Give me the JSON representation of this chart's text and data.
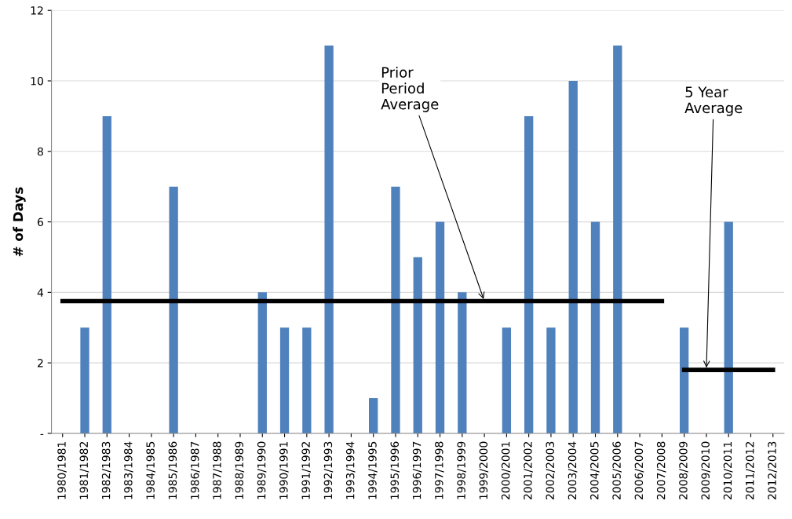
{
  "chart_data": {
    "type": "bar",
    "ylabel": "# of Days",
    "categories": [
      "1980/1981",
      "1981/1982",
      "1982/1983",
      "1983/1984",
      "1984/1985",
      "1985/1986",
      "1986/1987",
      "1987/1988",
      "1988/1989",
      "1989/1990",
      "1990/1991",
      "1991/1992",
      "1992/1993",
      "1993/1994",
      "1994/1995",
      "1995/1996",
      "1996/1997",
      "1997/1998",
      "1998/1999",
      "1999/2000",
      "2000/2001",
      "2001/2002",
      "2002/2003",
      "2003/2004",
      "2004/2005",
      "2005/2006",
      "2006/2007",
      "2007/2008",
      "2008/2009",
      "2009/2010",
      "2010/2011",
      "2011/2012",
      "2012/2013"
    ],
    "series": [
      {
        "color": "#4f81bd",
        "values": [
          0,
          3,
          9,
          0,
          0,
          7,
          0,
          0,
          0,
          4,
          3,
          3,
          11,
          0,
          1,
          7,
          5,
          6,
          4,
          0,
          3,
          9,
          3,
          10,
          6,
          11,
          0,
          0,
          3,
          0,
          6,
          0,
          0
        ]
      },
      {
        "type": "line",
        "color": "#000000",
        "values": [
          3.75,
          3.75,
          3.75,
          3.75,
          3.75,
          3.75,
          3.75,
          3.75,
          3.75,
          3.75,
          3.75,
          3.75,
          3.75,
          3.75,
          3.75,
          3.75,
          3.75,
          3.75,
          3.75,
          3.75,
          3.75,
          3.75,
          3.75,
          3.75,
          3.75,
          3.75,
          3.75,
          3.75,
          null,
          null,
          null,
          null,
          null
        ]
      },
      {
        "type": "line",
        "color": "#000000",
        "values": [
          null,
          null,
          null,
          null,
          null,
          null,
          null,
          null,
          null,
          null,
          null,
          null,
          null,
          null,
          null,
          null,
          null,
          null,
          null,
          null,
          null,
          null,
          null,
          null,
          null,
          null,
          null,
          null,
          1.8,
          1.8,
          1.8,
          1.8,
          1.8
        ]
      }
    ],
    "ylim": [
      0,
      12
    ],
    "yticks": [
      {
        "value": 0,
        "label": "-"
      },
      2,
      4,
      6,
      8,
      10,
      12
    ],
    "grid": "y",
    "annotations": [
      {
        "text": "Prior\nPeriod\nAverage",
        "x": "1999/2000",
        "y": 3.75
      },
      {
        "text": "5 Year\nAverage",
        "x": "2009/2010",
        "y": 1.8
      }
    ]
  }
}
